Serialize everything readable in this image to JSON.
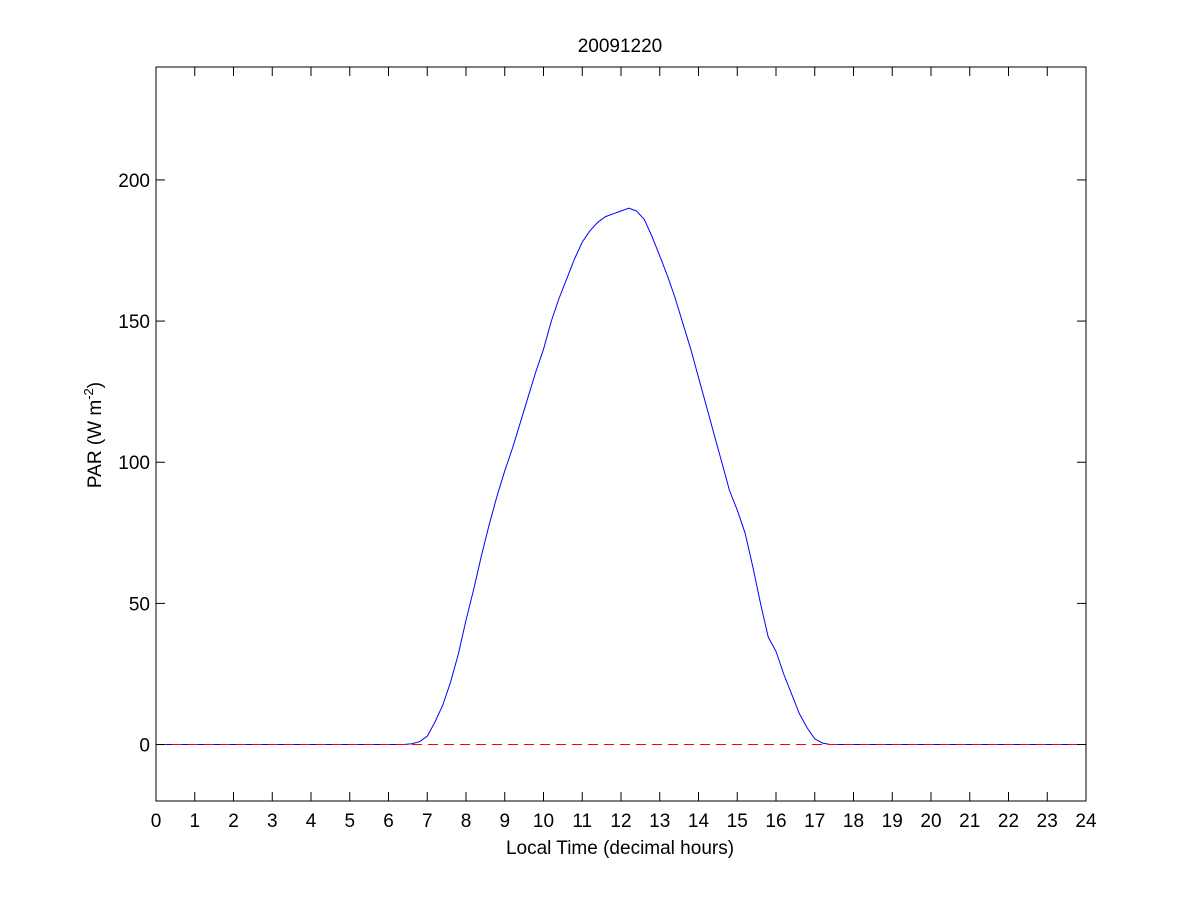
{
  "chart_data": {
    "type": "line",
    "title": "20091220",
    "xlabel": "Local Time (decimal hours)",
    "ylabel_main": "PAR (W m",
    "ylabel_sup": "-2",
    "ylabel_close": ")",
    "xlim": [
      0,
      24
    ],
    "ylim": [
      -20,
      240
    ],
    "xticks": [
      0,
      1,
      2,
      3,
      4,
      5,
      6,
      7,
      8,
      9,
      10,
      11,
      12,
      13,
      14,
      15,
      16,
      17,
      18,
      19,
      20,
      21,
      22,
      23,
      24
    ],
    "yticks": [
      0,
      50,
      100,
      150,
      200
    ],
    "grid": false,
    "colors": {
      "series": "#0000ff",
      "zero_line": "#ff0000",
      "axes": "#000000"
    },
    "series": [
      {
        "style": "solid",
        "x": [
          0,
          6.4,
          6.6,
          6.8,
          7.0,
          7.2,
          7.4,
          7.6,
          7.8,
          8.0,
          8.2,
          8.4,
          8.6,
          8.8,
          9.0,
          9.2,
          9.4,
          9.6,
          9.8,
          10.0,
          10.2,
          10.4,
          10.6,
          10.8,
          11.0,
          11.2,
          11.4,
          11.6,
          11.8,
          12.0,
          12.2,
          12.4,
          12.6,
          12.8,
          13.0,
          13.2,
          13.4,
          13.6,
          13.8,
          14.0,
          14.2,
          14.4,
          14.6,
          14.8,
          15.0,
          15.2,
          15.4,
          15.6,
          15.8,
          16.0,
          16.2,
          16.4,
          16.6,
          16.8,
          17.0,
          17.2,
          17.4,
          24
        ],
        "y": [
          0,
          0,
          0.3,
          1,
          3,
          8,
          14,
          22,
          32,
          44,
          55,
          67,
          78,
          88,
          97,
          105,
          114,
          123,
          132,
          140,
          150,
          158,
          165,
          172,
          178,
          182,
          185,
          187,
          188,
          189,
          190,
          189,
          186,
          180,
          173,
          166,
          158,
          149,
          140,
          130,
          120,
          110,
          100,
          90,
          83,
          75,
          63,
          50,
          38,
          33,
          25,
          18,
          11,
          6,
          2,
          0.5,
          0,
          0
        ]
      },
      {
        "style": "dashed",
        "x": [
          0,
          24
        ],
        "y": [
          0,
          0
        ]
      }
    ]
  }
}
